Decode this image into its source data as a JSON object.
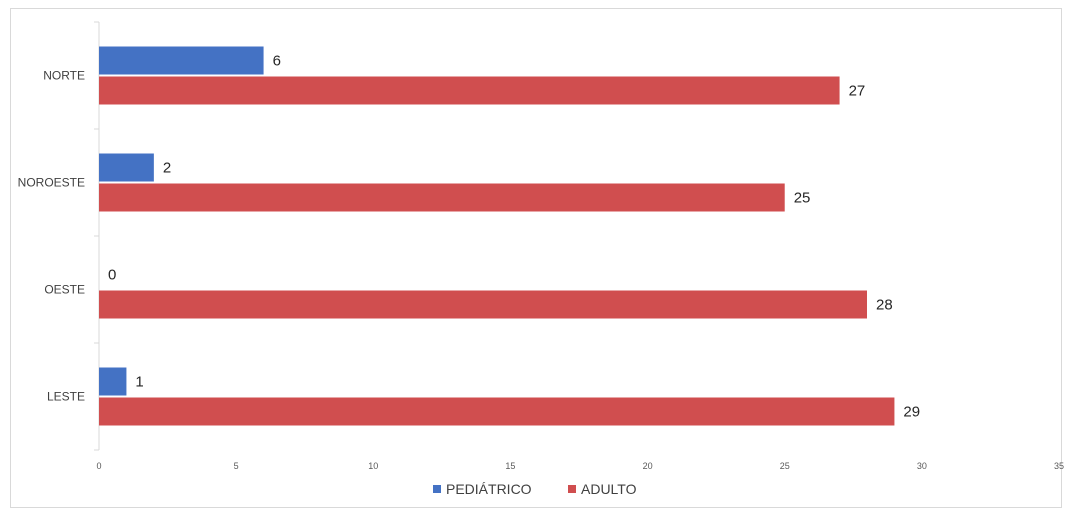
{
  "chart_data": {
    "type": "bar",
    "orientation": "horizontal",
    "categories": [
      "NORTE",
      "NOROESTE",
      "OESTE",
      "LESTE"
    ],
    "series": [
      {
        "name": "PEDIÁTRICO",
        "values": [
          6,
          2,
          0,
          1
        ],
        "color": "#4472C4"
      },
      {
        "name": "ADULTO",
        "values": [
          27,
          25,
          28,
          29
        ],
        "color": "#D04E4F"
      }
    ],
    "xlim": [
      0,
      35
    ],
    "x_ticks": [
      "0",
      "5",
      "10",
      "15",
      "20",
      "25",
      "30",
      "35"
    ],
    "title": "",
    "xlabel": "",
    "ylabel": "",
    "legend": {
      "position": "bottom"
    },
    "grid": false
  }
}
